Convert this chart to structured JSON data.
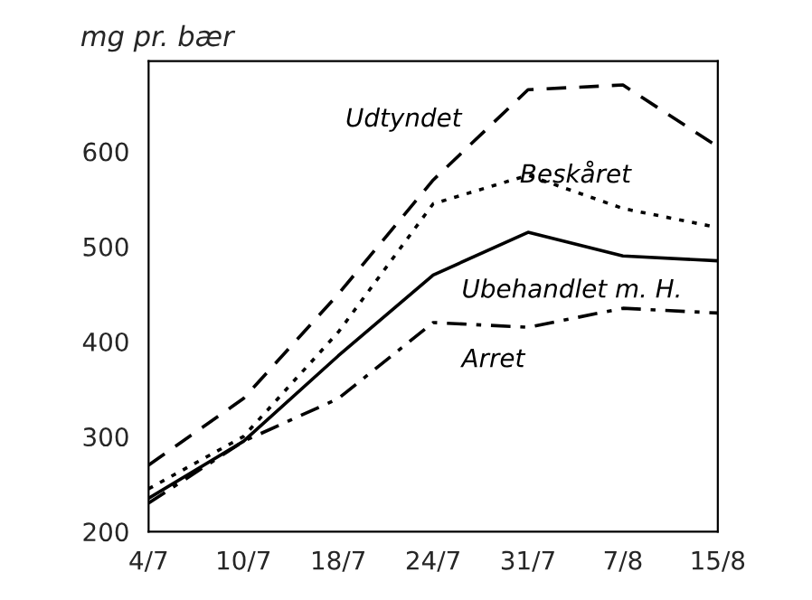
{
  "chart_data": {
    "type": "line",
    "ylabel": "mg pr. bær",
    "categories": [
      "4/7",
      "10/7",
      "18/7",
      "24/7",
      "31/7",
      "7/8",
      "15/8"
    ],
    "series": [
      {
        "name": "Udtyndet",
        "color": "#000000",
        "line_style": "dashed",
        "values": [
          270,
          340,
          450,
          570,
          665,
          670,
          605
        ]
      },
      {
        "name": "Beskåret",
        "color": "#000000",
        "line_style": "dotted",
        "values": [
          245,
          300,
          410,
          545,
          575,
          540,
          520
        ]
      },
      {
        "name": "Ubehandlet m. H.",
        "color": "#000000",
        "line_style": "solid",
        "values": [
          235,
          295,
          385,
          470,
          515,
          490,
          485
        ]
      },
      {
        "name": "Arret",
        "color": "#000000",
        "line_style": "dashdot",
        "values": [
          230,
          295,
          340,
          420,
          415,
          435,
          430
        ]
      }
    ],
    "ylim": [
      200,
      695
    ],
    "yticks": [
      200,
      300,
      400,
      500,
      600
    ],
    "grid": false,
    "legend": false
  }
}
